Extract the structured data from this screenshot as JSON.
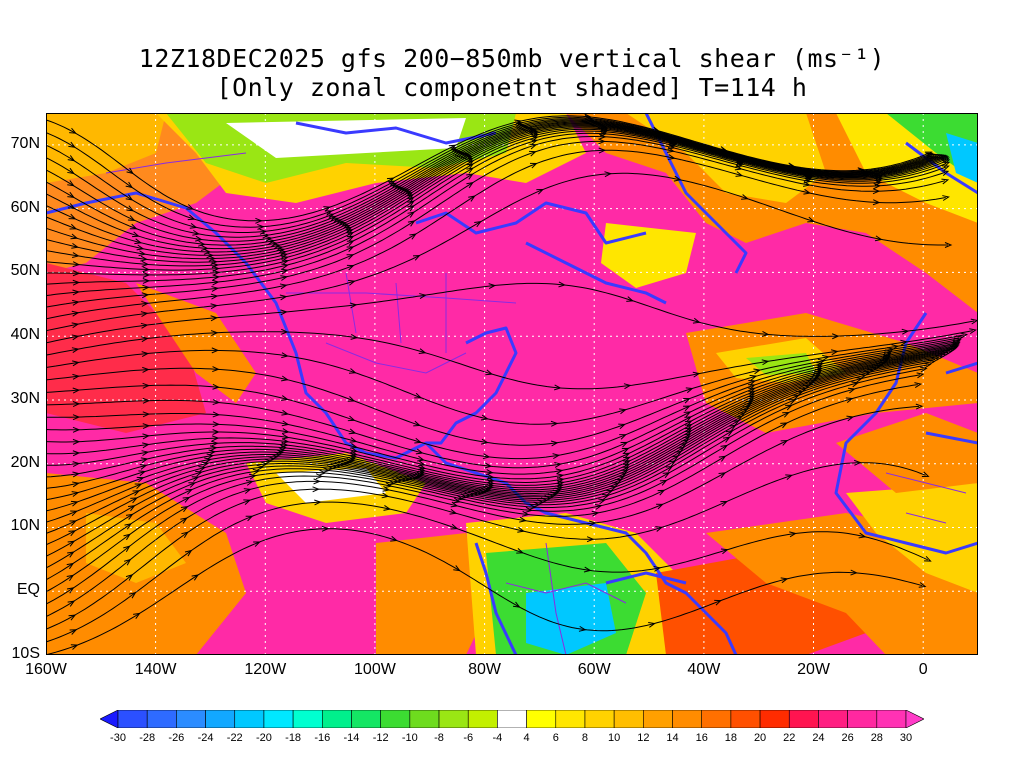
{
  "title_line1": "12Z18DEC2025 gfs 200−850mb vertical shear (ms⁻¹)",
  "title_line2": "[Only zonal componetnt shaded] T=114 h",
  "map": {
    "lon_range": [
      -160,
      10
    ],
    "lat_range": [
      -10,
      75
    ],
    "y_ticks": [
      {
        "label": "70N",
        "lat": 70
      },
      {
        "label": "60N",
        "lat": 60
      },
      {
        "label": "50N",
        "lat": 50
      },
      {
        "label": "40N",
        "lat": 40
      },
      {
        "label": "30N",
        "lat": 30
      },
      {
        "label": "20N",
        "lat": 20
      },
      {
        "label": "10N",
        "lat": 10
      },
      {
        "label": "EQ",
        "lat": 0
      },
      {
        "label": "10S",
        "lat": -10
      }
    ],
    "x_ticks": [
      {
        "label": "160W",
        "lon": -160
      },
      {
        "label": "140W",
        "lon": -140
      },
      {
        "label": "120W",
        "lon": -120
      },
      {
        "label": "100W",
        "lon": -100
      },
      {
        "label": "80W",
        "lon": -80
      },
      {
        "label": "60W",
        "lon": -60
      },
      {
        "label": "40W",
        "lon": -40
      },
      {
        "label": "20W",
        "lon": -20
      },
      {
        "label": "0",
        "lon": 0
      }
    ]
  },
  "colorbar": {
    "labels": [
      "-30",
      "-28",
      "-26",
      "-24",
      "-22",
      "-20",
      "-18",
      "-16",
      "-14",
      "-12",
      "-10",
      "-8",
      "-6",
      "-4",
      "4",
      "6",
      "8",
      "10",
      "12",
      "14",
      "16",
      "18",
      "20",
      "22",
      "24",
      "26",
      "28",
      "30"
    ],
    "colors": [
      "#1a1aff",
      "#2b50ff",
      "#2e6bff",
      "#2b8cff",
      "#12a8ff",
      "#00c8ff",
      "#00e8ff",
      "#00ffd0",
      "#00f08c",
      "#14e664",
      "#3cdc32",
      "#6edc1e",
      "#9ae614",
      "#c3f000",
      "#ffffff",
      "#ffff00",
      "#ffe600",
      "#ffd200",
      "#ffbe00",
      "#ffa000",
      "#ff8c00",
      "#ff7000",
      "#ff5000",
      "#ff2c00",
      "#ff1450",
      "#ff1e82",
      "#ff28a0",
      "#ff32b4",
      "#ff3cc8"
    ]
  }
}
